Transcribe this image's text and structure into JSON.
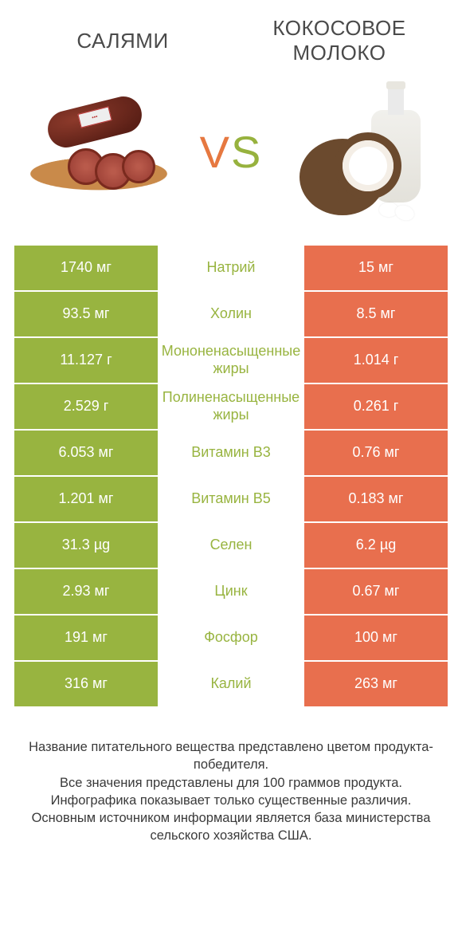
{
  "titles": {
    "left": "САЛЯМИ",
    "right": "КОКОСОВОЕ МОЛОКО"
  },
  "vs": {
    "v": "V",
    "s": "S"
  },
  "colors": {
    "left": "#98b440",
    "right": "#e86f4e",
    "mid_left_wins": "#98b440",
    "mid_right_wins": "#e86f4e",
    "text_white": "#ffffff"
  },
  "rows": [
    {
      "nutrient": "Натрий",
      "left": "1740 мг",
      "right": "15 мг",
      "winner": "left"
    },
    {
      "nutrient": "Холин",
      "left": "93.5 мг",
      "right": "8.5 мг",
      "winner": "left"
    },
    {
      "nutrient": "Мононенасыщенные жиры",
      "left": "11.127 г",
      "right": "1.014 г",
      "winner": "left"
    },
    {
      "nutrient": "Полиненасыщенные жиры",
      "left": "2.529 г",
      "right": "0.261 г",
      "winner": "left"
    },
    {
      "nutrient": "Витамин B3",
      "left": "6.053 мг",
      "right": "0.76 мг",
      "winner": "left"
    },
    {
      "nutrient": "Витамин B5",
      "left": "1.201 мг",
      "right": "0.183 мг",
      "winner": "left"
    },
    {
      "nutrient": "Селен",
      "left": "31.3 µg",
      "right": "6.2 µg",
      "winner": "left"
    },
    {
      "nutrient": "Цинк",
      "left": "2.93 мг",
      "right": "0.67 мг",
      "winner": "left"
    },
    {
      "nutrient": "Фосфор",
      "left": "191 мг",
      "right": "100 мг",
      "winner": "left"
    },
    {
      "nutrient": "Калий",
      "left": "316 мг",
      "right": "263 мг",
      "winner": "left"
    }
  ],
  "footer": "Название питательного вещества представлено цветом продукта-победителя.\nВсе значения представлены для 100 граммов продукта.\nИнфографика показывает только существенные различия.\nОсновным источником информации является база министерства сельского хозяйства США."
}
